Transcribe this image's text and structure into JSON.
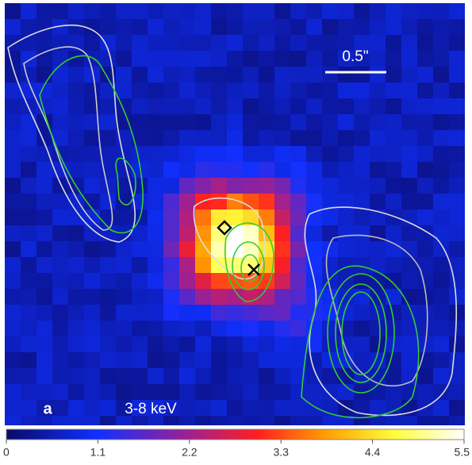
{
  "panel_label": "a",
  "band_label": "3-8 keV",
  "scale_bar_label": "0.5\"",
  "colorbar": {
    "lim": [
      0,
      5.5
    ],
    "ticks": [
      0,
      1.1,
      2.2,
      3.3,
      4.4,
      5.5
    ]
  }
}
